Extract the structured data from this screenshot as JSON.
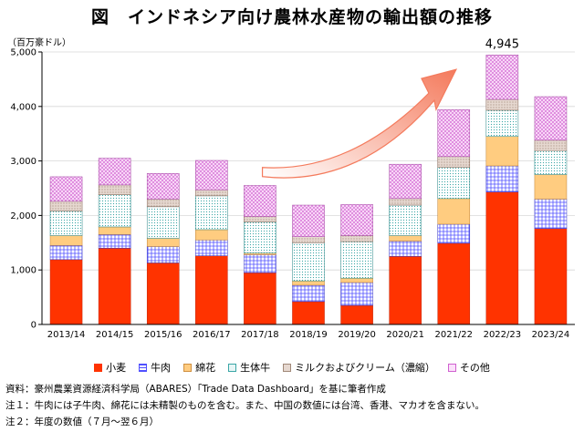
{
  "title": "図　インドネシア向け農林水産物の輸出額の推移",
  "unit_label": "（百万豪ドル）",
  "chart_data": {
    "type": "bar",
    "stacked": true,
    "categories": [
      "2013/14",
      "2014/15",
      "2015/16",
      "2016/17",
      "2017/18",
      "2018/19",
      "2019/20",
      "2020/21",
      "2021/22",
      "2022/23",
      "2023/24"
    ],
    "series": [
      {
        "name": "小麦",
        "key": "wheat",
        "color": "#ff3300",
        "values": [
          1190,
          1400,
          1130,
          1260,
          950,
          420,
          350,
          1250,
          1490,
          2430,
          1760
        ]
      },
      {
        "name": "牛肉",
        "key": "beef",
        "color": "#7a7aff",
        "values": [
          260,
          250,
          300,
          290,
          330,
          300,
          420,
          280,
          350,
          480,
          540
        ]
      },
      {
        "name": "綿花",
        "key": "cotton",
        "color": "#ffcc80",
        "values": [
          180,
          140,
          150,
          190,
          30,
          80,
          80,
          100,
          470,
          540,
          450
        ]
      },
      {
        "name": "生体牛",
        "key": "cattle",
        "color": "#c7ecec",
        "values": [
          450,
          590,
          580,
          620,
          570,
          700,
          670,
          560,
          570,
          480,
          440
        ]
      },
      {
        "name": "ミルクおよびクリーム（濃縮）",
        "key": "milk",
        "color": "#d8c8c0",
        "values": [
          180,
          180,
          140,
          110,
          100,
          110,
          110,
          120,
          200,
          200,
          190
        ]
      },
      {
        "name": "その他",
        "key": "other",
        "color": "#f0b0ec",
        "values": [
          450,
          490,
          470,
          540,
          570,
          580,
          570,
          630,
          860,
          815,
          800
        ]
      }
    ],
    "ylim": [
      0,
      5000
    ],
    "yticks": [
      0,
      1000,
      2000,
      3000,
      4000,
      5000
    ],
    "ytick_labels": [
      "0",
      "1,000",
      "2,000",
      "3,000",
      "4,000",
      "5,000"
    ],
    "annotation": {
      "category": "2022/23",
      "text": "4,945"
    },
    "arrow_color": "#f47a5c"
  },
  "legend_position": "bottom",
  "notes": [
    "資料：豪州農業資源経済科学局（ABARES）「Trade Data Dashboard」を基に筆者作成",
    "注１：牛肉には子牛肉、綿花には未精製のものを含む。また、中国の数値には台湾、香港、マカオを含まない。",
    "注２：年度の数値（７月～翌６月）"
  ]
}
